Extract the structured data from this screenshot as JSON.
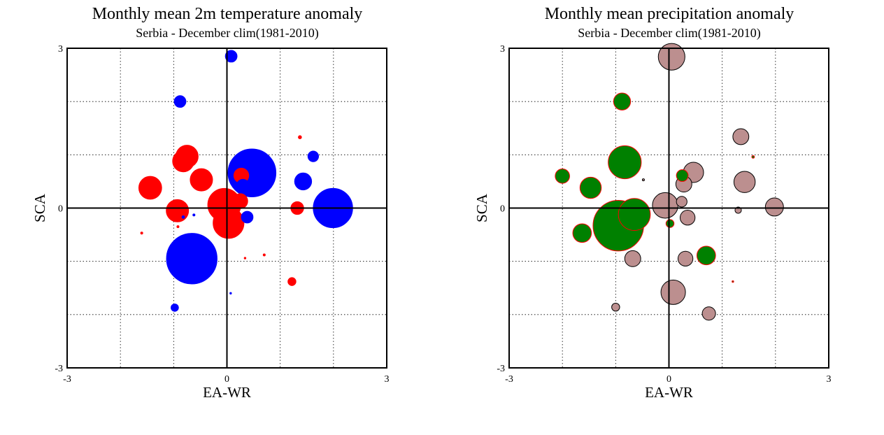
{
  "chart_data": [
    {
      "type": "scatter",
      "title": "Monthly mean 2m temperature anomaly",
      "subtitle": "Serbia - December  clim(1981-2010)",
      "xlabel": "EA-WR",
      "ylabel": "SCA",
      "xlim": [
        -3,
        3
      ],
      "ylim": [
        -3,
        3
      ],
      "xticks": [
        "-3",
        "0",
        "3"
      ],
      "yticks": [
        "-3",
        "0",
        "3"
      ],
      "grid": true,
      "colors": {
        "positive": "#ff0000",
        "negative": "#0000ff"
      },
      "points": [
        {
          "x": 0.08,
          "y": 2.85,
          "size": 0.22,
          "sign": "negative"
        },
        {
          "x": -0.88,
          "y": 2.0,
          "size": 0.22,
          "sign": "negative"
        },
        {
          "x": 1.37,
          "y": 1.33,
          "size": 0.06,
          "sign": "positive"
        },
        {
          "x": 1.62,
          "y": 0.97,
          "size": 0.2,
          "sign": "negative"
        },
        {
          "x": -0.75,
          "y": 0.97,
          "size": 0.42,
          "sign": "positive"
        },
        {
          "x": -0.82,
          "y": 0.88,
          "size": 0.4,
          "sign": "positive"
        },
        {
          "x": 0.47,
          "y": 0.66,
          "size": 0.9,
          "sign": "negative"
        },
        {
          "x": 0.27,
          "y": 0.61,
          "size": 0.28,
          "sign": "positive"
        },
        {
          "x": -0.48,
          "y": 0.53,
          "size": 0.42,
          "sign": "positive"
        },
        {
          "x": 1.43,
          "y": 0.5,
          "size": 0.32,
          "sign": "negative"
        },
        {
          "x": 0.3,
          "y": 0.42,
          "size": 0.24,
          "sign": "negative"
        },
        {
          "x": -1.44,
          "y": 0.38,
          "size": 0.43,
          "sign": "positive"
        },
        {
          "x": 0.25,
          "y": 0.13,
          "size": 0.28,
          "sign": "positive"
        },
        {
          "x": -0.05,
          "y": 0.06,
          "size": 0.62,
          "sign": "positive"
        },
        {
          "x": 1.99,
          "y": 0.0,
          "size": 0.74,
          "sign": "negative"
        },
        {
          "x": 1.32,
          "y": 0.0,
          "size": 0.24,
          "sign": "positive"
        },
        {
          "x": -0.93,
          "y": -0.05,
          "size": 0.42,
          "sign": "positive"
        },
        {
          "x": 0.38,
          "y": -0.17,
          "size": 0.22,
          "sign": "negative"
        },
        {
          "x": -0.82,
          "y": -0.17,
          "size": 0.05,
          "sign": "negative"
        },
        {
          "x": -0.62,
          "y": -0.13,
          "size": 0.04,
          "sign": "negative"
        },
        {
          "x": 0.03,
          "y": -0.28,
          "size": 0.58,
          "sign": "positive"
        },
        {
          "x": -0.92,
          "y": -0.35,
          "size": 0.04,
          "sign": "positive"
        },
        {
          "x": -1.6,
          "y": -0.47,
          "size": 0.04,
          "sign": "positive"
        },
        {
          "x": -0.66,
          "y": -0.95,
          "size": 0.95,
          "sign": "negative"
        },
        {
          "x": 0.7,
          "y": -0.88,
          "size": 0.04,
          "sign": "positive"
        },
        {
          "x": 0.34,
          "y": -0.94,
          "size": 0.02,
          "sign": "positive"
        },
        {
          "x": 1.22,
          "y": -1.38,
          "size": 0.15,
          "sign": "positive"
        },
        {
          "x": 0.07,
          "y": -1.6,
          "size": 0.02,
          "sign": "negative"
        },
        {
          "x": -0.98,
          "y": -1.87,
          "size": 0.14,
          "sign": "negative"
        }
      ]
    },
    {
      "type": "scatter",
      "title": "Monthly mean precipitation anomaly",
      "subtitle": "Serbia - December  clim(1981-2010)",
      "xlabel": "EA-WR",
      "ylabel": "SCA",
      "xlim": [
        -3,
        3
      ],
      "ylim": [
        -3,
        3
      ],
      "xticks": [
        "-3",
        "0",
        "3"
      ],
      "yticks": [
        "-3",
        "0",
        "3"
      ],
      "grid": true,
      "colors": {
        "positive": "#008000",
        "negative": "#bc8f8f",
        "positive_edge": "#ff0000",
        "negative_edge": "#000000"
      },
      "points": [
        {
          "x": 0.05,
          "y": 2.84,
          "size": 0.5,
          "sign": "negative"
        },
        {
          "x": -0.88,
          "y": 2.0,
          "size": 0.32,
          "sign": "positive"
        },
        {
          "x": 1.35,
          "y": 1.34,
          "size": 0.3,
          "sign": "negative"
        },
        {
          "x": 1.58,
          "y": 0.96,
          "size": 0.05,
          "sign": "positive"
        },
        {
          "x": -0.83,
          "y": 0.86,
          "size": 0.62,
          "sign": "positive"
        },
        {
          "x": 0.46,
          "y": 0.67,
          "size": 0.38,
          "sign": "negative"
        },
        {
          "x": -2.0,
          "y": 0.6,
          "size": 0.27,
          "sign": "positive"
        },
        {
          "x": 0.25,
          "y": 0.61,
          "size": 0.22,
          "sign": "positive"
        },
        {
          "x": -0.48,
          "y": 0.53,
          "size": 0.04,
          "sign": "negative"
        },
        {
          "x": 1.42,
          "y": 0.49,
          "size": 0.4,
          "sign": "negative"
        },
        {
          "x": 0.28,
          "y": 0.45,
          "size": 0.3,
          "sign": "negative"
        },
        {
          "x": -1.47,
          "y": 0.38,
          "size": 0.4,
          "sign": "positive"
        },
        {
          "x": 0.24,
          "y": 0.12,
          "size": 0.2,
          "sign": "negative"
        },
        {
          "x": -0.07,
          "y": 0.05,
          "size": 0.48,
          "sign": "negative"
        },
        {
          "x": 1.98,
          "y": 0.02,
          "size": 0.34,
          "sign": "negative"
        },
        {
          "x": 1.3,
          "y": -0.04,
          "size": 0.12,
          "sign": "negative"
        },
        {
          "x": -0.65,
          "y": -0.12,
          "size": 0.6,
          "sign": "positive"
        },
        {
          "x": 0.35,
          "y": -0.18,
          "size": 0.28,
          "sign": "negative"
        },
        {
          "x": 0.02,
          "y": -0.29,
          "size": 0.15,
          "sign": "positive"
        },
        {
          "x": -0.95,
          "y": -0.33,
          "size": 0.95,
          "sign": "positive"
        },
        {
          "x": -1.63,
          "y": -0.47,
          "size": 0.35,
          "sign": "positive"
        },
        {
          "x": 0.7,
          "y": -0.89,
          "size": 0.35,
          "sign": "positive"
        },
        {
          "x": -0.68,
          "y": -0.95,
          "size": 0.3,
          "sign": "negative"
        },
        {
          "x": 0.31,
          "y": -0.95,
          "size": 0.28,
          "sign": "negative"
        },
        {
          "x": 1.2,
          "y": -1.38,
          "size": 0.03,
          "sign": "positive"
        },
        {
          "x": 0.08,
          "y": -1.58,
          "size": 0.46,
          "sign": "negative"
        },
        {
          "x": -1.0,
          "y": -1.86,
          "size": 0.15,
          "sign": "negative"
        },
        {
          "x": 0.75,
          "y": -1.98,
          "size": 0.25,
          "sign": "negative"
        }
      ]
    }
  ]
}
